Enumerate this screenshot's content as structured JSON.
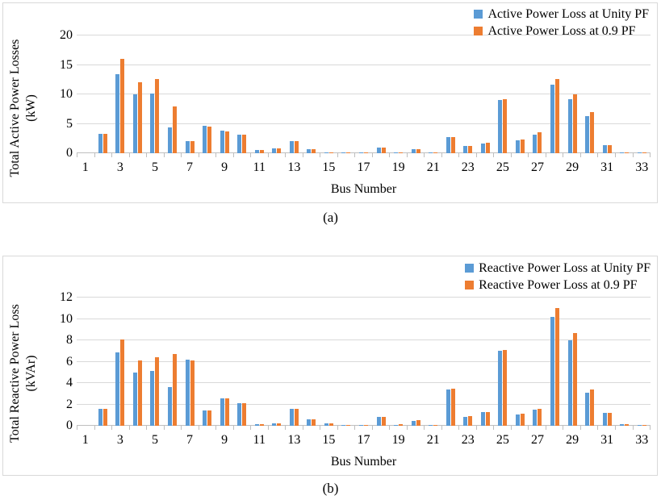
{
  "page": {
    "captions": {
      "a": "(a)",
      "b": "(b)"
    }
  },
  "colors": {
    "unity_pf_blue": "#5B9BD5",
    "pf_09_orange": "#ED7D31",
    "gridline": "#D9D9D9",
    "axis_line": "#BFBFBF",
    "chart_border": "#D9D9D9",
    "text": "#000000"
  },
  "chart_data": [
    {
      "id": "a",
      "type": "bar",
      "title": "",
      "xlabel": "Bus Number",
      "ylabel": "Total Active Power Losses (kW)",
      "ylabel_lines": [
        "Total Active Power Losses",
        "(kW)"
      ],
      "ylim": [
        0,
        20
      ],
      "yticks": [
        0,
        5,
        10,
        15,
        20
      ],
      "grid": true,
      "legend_position": "top-right",
      "categories": [
        1,
        2,
        3,
        4,
        5,
        6,
        7,
        8,
        9,
        10,
        11,
        12,
        13,
        14,
        15,
        16,
        17,
        18,
        19,
        20,
        21,
        22,
        23,
        24,
        25,
        26,
        27,
        28,
        29,
        30,
        31,
        32,
        33
      ],
      "xticks_shown": [
        1,
        3,
        5,
        7,
        9,
        11,
        13,
        15,
        17,
        19,
        21,
        23,
        25,
        27,
        29,
        31,
        33
      ],
      "series": [
        {
          "name": "Active Power Loss at Unity PF",
          "color": "#5B9BD5",
          "values": [
            0,
            3.3,
            13.5,
            10.0,
            10.1,
            4.4,
            2.0,
            4.6,
            3.8,
            3.2,
            0.6,
            0.8,
            2.1,
            0.7,
            0.2,
            0.05,
            0.05,
            1.0,
            0.1,
            0.7,
            0.05,
            2.7,
            1.3,
            1.7,
            9.1,
            2.2,
            3.2,
            11.6,
            9.2,
            6.3,
            1.4,
            0.1,
            0.02
          ]
        },
        {
          "name": "Active Power Loss at 0.9 PF",
          "color": "#ED7D31",
          "values": [
            0,
            3.3,
            16.0,
            12.1,
            12.6,
            7.9,
            2.0,
            4.5,
            3.7,
            3.1,
            0.6,
            0.8,
            2.1,
            0.7,
            0.2,
            0.05,
            0.05,
            1.0,
            0.1,
            0.7,
            0.05,
            2.7,
            1.3,
            1.75,
            9.2,
            2.4,
            3.5,
            12.6,
            10.0,
            7.0,
            1.4,
            0.1,
            0.02
          ]
        }
      ]
    },
    {
      "id": "b",
      "type": "bar",
      "title": "",
      "xlabel": "Bus Number",
      "ylabel": "Total Reactive Power Loss (kVAr)",
      "ylabel_lines": [
        "Total Reactive Power Loss",
        "(kVAr)"
      ],
      "ylim": [
        0,
        12
      ],
      "yticks": [
        0,
        2,
        4,
        6,
        8,
        10,
        12
      ],
      "grid": true,
      "legend_position": "top-right",
      "categories": [
        1,
        2,
        3,
        4,
        5,
        6,
        7,
        8,
        9,
        10,
        11,
        12,
        13,
        14,
        15,
        16,
        17,
        18,
        19,
        20,
        21,
        22,
        23,
        24,
        25,
        26,
        27,
        28,
        29,
        30,
        31,
        32,
        33
      ],
      "xticks_shown": [
        1,
        3,
        5,
        7,
        9,
        11,
        13,
        15,
        17,
        19,
        21,
        23,
        25,
        27,
        29,
        31,
        33
      ],
      "series": [
        {
          "name": "Reactive Power Loss at Unity PF",
          "color": "#5B9BD5",
          "values": [
            0,
            1.6,
            6.9,
            5.0,
            5.1,
            3.6,
            6.2,
            1.45,
            2.6,
            2.15,
            0.15,
            0.25,
            1.6,
            0.6,
            0.2,
            0.1,
            0.05,
            0.8,
            0.1,
            0.45,
            0.02,
            3.4,
            0.8,
            1.25,
            7.0,
            1.05,
            1.5,
            10.2,
            8.0,
            3.1,
            1.2,
            0.15,
            0.05
          ]
        },
        {
          "name": "Reactive Power Loss at 0.9 PF",
          "color": "#ED7D31",
          "values": [
            0,
            1.6,
            8.1,
            6.1,
            6.4,
            6.7,
            6.1,
            1.45,
            2.55,
            2.1,
            0.15,
            0.25,
            1.6,
            0.6,
            0.25,
            0.1,
            0.05,
            0.8,
            0.12,
            0.5,
            0.02,
            3.45,
            0.9,
            1.3,
            7.1,
            1.15,
            1.6,
            11.0,
            8.7,
            3.4,
            1.2,
            0.15,
            0.05
          ]
        }
      ]
    }
  ]
}
